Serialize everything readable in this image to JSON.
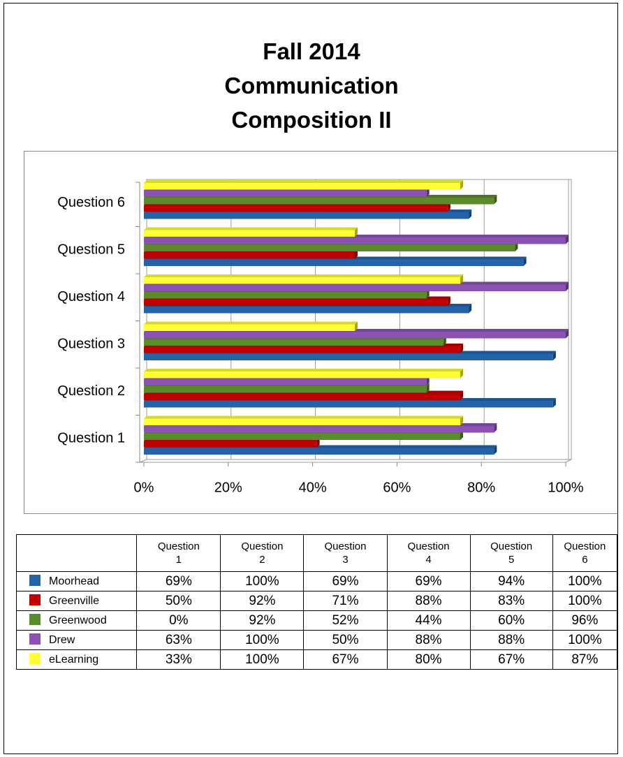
{
  "chart_data": {
    "type": "bar",
    "orientation": "horizontal",
    "title": [
      "Fall 2014",
      "Communication",
      "Composition II"
    ],
    "categories": [
      "Question 1",
      "Question 2",
      "Question 3",
      "Question 4",
      "Question 5",
      "Question 6"
    ],
    "series": [
      {
        "name": "Moorhead",
        "color": "#2463a8",
        "values": [
          83,
          97,
          97,
          77,
          90,
          77
        ]
      },
      {
        "name": "Greenville",
        "color": "#c00000",
        "values": [
          41,
          75,
          75,
          72,
          50,
          72
        ]
      },
      {
        "name": "Greenwood",
        "color": "#5b8c2a",
        "values": [
          75,
          67,
          71,
          67,
          88,
          83
        ]
      },
      {
        "name": "Drew",
        "color": "#8a52b3",
        "values": [
          83,
          67,
          100,
          100,
          100,
          67
        ]
      },
      {
        "name": "eLearning",
        "color": "#ffff33",
        "values": [
          75,
          75,
          50,
          75,
          50,
          75
        ]
      }
    ],
    "xlim": [
      0,
      100
    ],
    "xticks": [
      {
        "value": 0,
        "label": "0%"
      },
      {
        "value": 20,
        "label": "20%"
      },
      {
        "value": 40,
        "label": "40%"
      },
      {
        "value": 60,
        "label": "60%"
      },
      {
        "value": 80,
        "label": "80%"
      },
      {
        "value": 100,
        "label": "100%"
      }
    ],
    "grid": true
  },
  "table": {
    "header": [
      "Question 1",
      "Question 2",
      "Question 3",
      "Question 4",
      "Question 5",
      "Question 6"
    ],
    "rows": [
      [
        "69%",
        "100%",
        "69%",
        "69%",
        "94%",
        "100%"
      ],
      [
        "50%",
        "92%",
        "71%",
        "88%",
        "83%",
        "100%"
      ],
      [
        "0%",
        "92%",
        "52%",
        "44%",
        "60%",
        "96%"
      ],
      [
        "63%",
        "100%",
        "50%",
        "88%",
        "88%",
        "100%"
      ],
      [
        "33%",
        "100%",
        "67%",
        "80%",
        "67%",
        "87%"
      ]
    ]
  }
}
